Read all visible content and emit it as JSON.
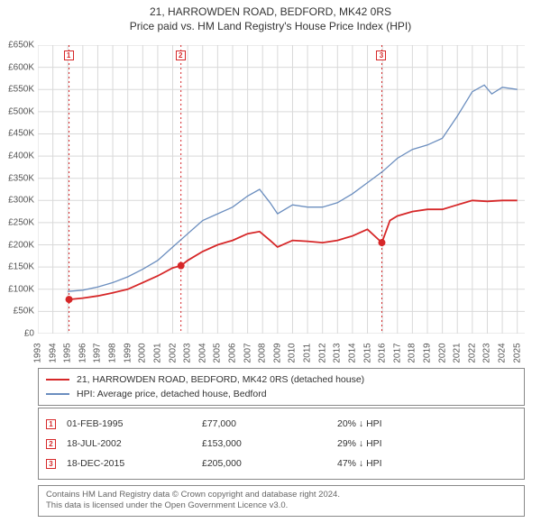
{
  "title": "21, HARROWDEN ROAD, BEDFORD, MK42 0RS",
  "subtitle": "Price paid vs. HM Land Registry's House Price Index (HPI)",
  "chart": {
    "type": "line",
    "background_color": "#ffffff",
    "grid_color": "#d9d9d9",
    "event_line_color": "#d62728",
    "event_line_dash": "2,3",
    "x_domain": [
      1993,
      2025.5
    ],
    "y_domain": [
      0,
      650000
    ],
    "y_ticks": [
      0,
      50000,
      100000,
      150000,
      200000,
      250000,
      300000,
      350000,
      400000,
      450000,
      500000,
      550000,
      600000,
      650000
    ],
    "y_tick_labels": [
      "£0",
      "£50K",
      "£100K",
      "£150K",
      "£200K",
      "£250K",
      "£300K",
      "£350K",
      "£400K",
      "£450K",
      "£500K",
      "£550K",
      "£600K",
      "£650K"
    ],
    "x_ticks": [
      1993,
      1994,
      1995,
      1996,
      1997,
      1998,
      1999,
      2000,
      2001,
      2002,
      2003,
      2004,
      2005,
      2006,
      2007,
      2008,
      2009,
      2010,
      2011,
      2012,
      2013,
      2014,
      2015,
      2016,
      2017,
      2018,
      2019,
      2020,
      2021,
      2022,
      2023,
      2024,
      2025
    ],
    "series": [
      {
        "name": "price_paid",
        "label": "21, HARROWDEN ROAD, BEDFORD, MK42 0RS (detached house)",
        "color": "#d62728",
        "line_width": 1.8,
        "points": [
          [
            1995.08,
            77000
          ],
          [
            1996,
            80000
          ],
          [
            1997,
            85000
          ],
          [
            1998,
            92000
          ],
          [
            1999,
            100000
          ],
          [
            2000,
            115000
          ],
          [
            2001,
            130000
          ],
          [
            2002,
            148000
          ],
          [
            2002.55,
            153000
          ],
          [
            2003,
            165000
          ],
          [
            2004,
            185000
          ],
          [
            2005,
            200000
          ],
          [
            2006,
            210000
          ],
          [
            2007,
            225000
          ],
          [
            2007.8,
            230000
          ],
          [
            2008.5,
            210000
          ],
          [
            2009,
            195000
          ],
          [
            2010,
            210000
          ],
          [
            2011,
            208000
          ],
          [
            2012,
            205000
          ],
          [
            2013,
            210000
          ],
          [
            2014,
            220000
          ],
          [
            2015,
            235000
          ],
          [
            2015.96,
            205000
          ],
          [
            2016.5,
            255000
          ],
          [
            2017,
            265000
          ],
          [
            2018,
            275000
          ],
          [
            2019,
            280000
          ],
          [
            2020,
            280000
          ],
          [
            2021,
            290000
          ],
          [
            2022,
            300000
          ],
          [
            2023,
            298000
          ],
          [
            2024,
            300000
          ],
          [
            2025,
            300000
          ]
        ],
        "markers": [
          {
            "x": 1995.08,
            "y": 77000
          },
          {
            "x": 2002.55,
            "y": 153000
          },
          {
            "x": 2015.96,
            "y": 205000
          }
        ]
      },
      {
        "name": "hpi",
        "label": "HPI: Average price, detached house, Bedford",
        "color": "#6b8ebf",
        "line_width": 1.3,
        "points": [
          [
            1995,
            95000
          ],
          [
            1996,
            98000
          ],
          [
            1997,
            105000
          ],
          [
            1998,
            115000
          ],
          [
            1999,
            128000
          ],
          [
            2000,
            145000
          ],
          [
            2001,
            165000
          ],
          [
            2002,
            195000
          ],
          [
            2003,
            225000
          ],
          [
            2004,
            255000
          ],
          [
            2005,
            270000
          ],
          [
            2006,
            285000
          ],
          [
            2007,
            310000
          ],
          [
            2007.8,
            325000
          ],
          [
            2008.5,
            295000
          ],
          [
            2009,
            270000
          ],
          [
            2010,
            290000
          ],
          [
            2011,
            285000
          ],
          [
            2012,
            285000
          ],
          [
            2013,
            295000
          ],
          [
            2014,
            315000
          ],
          [
            2015,
            340000
          ],
          [
            2016,
            365000
          ],
          [
            2017,
            395000
          ],
          [
            2018,
            415000
          ],
          [
            2019,
            425000
          ],
          [
            2020,
            440000
          ],
          [
            2021,
            490000
          ],
          [
            2022,
            545000
          ],
          [
            2022.8,
            560000
          ],
          [
            2023.3,
            540000
          ],
          [
            2024,
            555000
          ],
          [
            2025,
            550000
          ]
        ]
      }
    ],
    "events": [
      {
        "index": 1,
        "x": 1995.08
      },
      {
        "index": 2,
        "x": 2002.55
      },
      {
        "index": 3,
        "x": 2015.96
      }
    ]
  },
  "legend": {
    "border_color": "#888"
  },
  "sales": [
    {
      "index": "1",
      "date": "01-FEB-1995",
      "price": "£77,000",
      "delta": "20% ↓ HPI"
    },
    {
      "index": "2",
      "date": "18-JUL-2002",
      "price": "£153,000",
      "delta": "29% ↓ HPI"
    },
    {
      "index": "3",
      "date": "18-DEC-2015",
      "price": "£205,000",
      "delta": "47% ↓ HPI"
    }
  ],
  "footer": {
    "line1": "Contains HM Land Registry data © Crown copyright and database right 2024.",
    "line2": "This data is licensed under the Open Government Licence v3.0."
  },
  "styling": {
    "title_fontsize": 12,
    "tick_fontsize": 10,
    "legend_fontsize": 10.5,
    "marker_border_color": "#d62728",
    "marker_text_color": "#d62728"
  }
}
